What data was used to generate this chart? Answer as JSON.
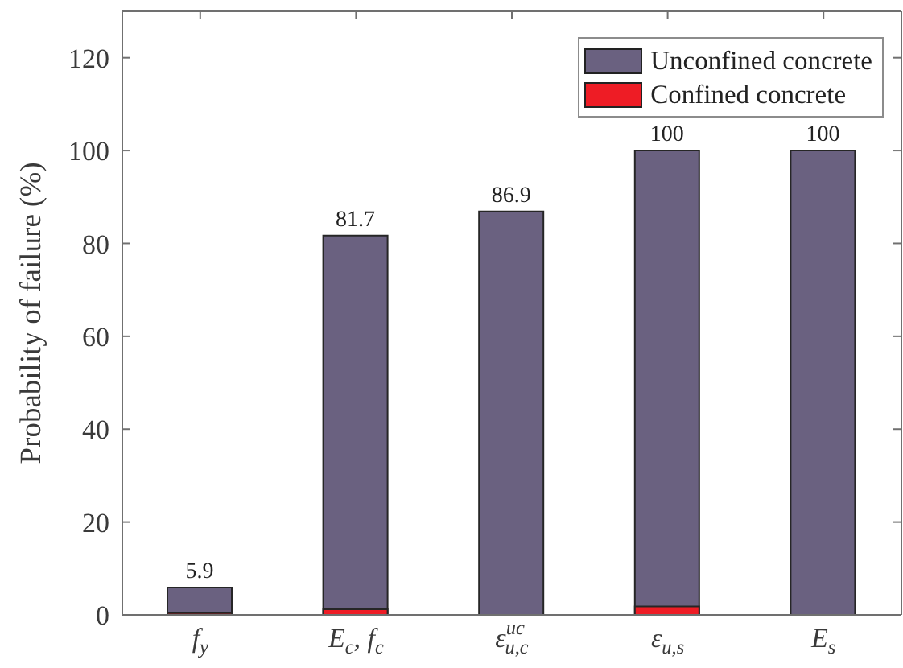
{
  "chart_data": {
    "type": "bar",
    "categories": [
      "f$_{y}$",
      "E$_{c}$, f$_{c}$",
      "ε$^{uc}$$_{u,c}$",
      "ε$_{u,s}$",
      "E$_{s}$"
    ],
    "ylabel": "Probability of failure (%)",
    "series": [
      {
        "name": "Unconfined concrete",
        "color": "#6a6180",
        "values": [
          5.9,
          81.7,
          86.9,
          100,
          100
        ],
        "value_labels": [
          "5.9",
          "81.7",
          "86.9",
          "100",
          "100"
        ]
      },
      {
        "name": "Confined concrete",
        "color": "#ee1c25",
        "values": [
          0.4,
          1.2,
          0,
          1.8,
          0
        ]
      }
    ],
    "ylim": [
      0,
      130
    ],
    "yticks": [
      0,
      20,
      40,
      60,
      80,
      100,
      120
    ],
    "legend": "top right"
  }
}
